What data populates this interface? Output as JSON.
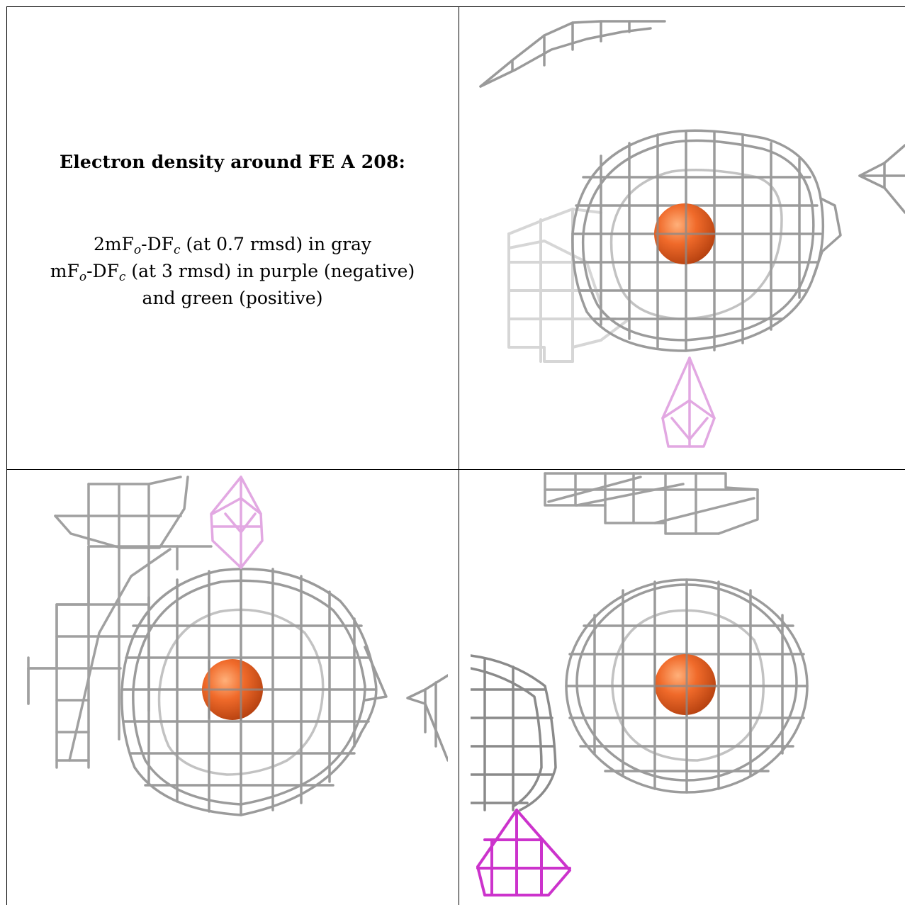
{
  "caption": {
    "title": "Electron density around FE A 208:",
    "line1_main": "2mF",
    "line1_sub1": "o",
    "line1_mid": "-DF",
    "line1_sub2": "c",
    "line1_tail": " (at 0.7 rmsd) in gray",
    "line2_main": "mF",
    "line2_sub1": "o",
    "line2_mid": "-DF",
    "line2_sub2": "c",
    "line2_tail": " (at 3 rmsd) in purple (negative)",
    "line3": "and green (positive)"
  },
  "colors": {
    "mesh_gray": "#8c8c8c",
    "mesh_gray_light": "#cfcfcf",
    "atom_orange": "#f06a2a",
    "negative_purple": "#cc33cc",
    "negative_purple_light": "#e2a8e2"
  },
  "atom": {
    "name": "FE A 208"
  }
}
